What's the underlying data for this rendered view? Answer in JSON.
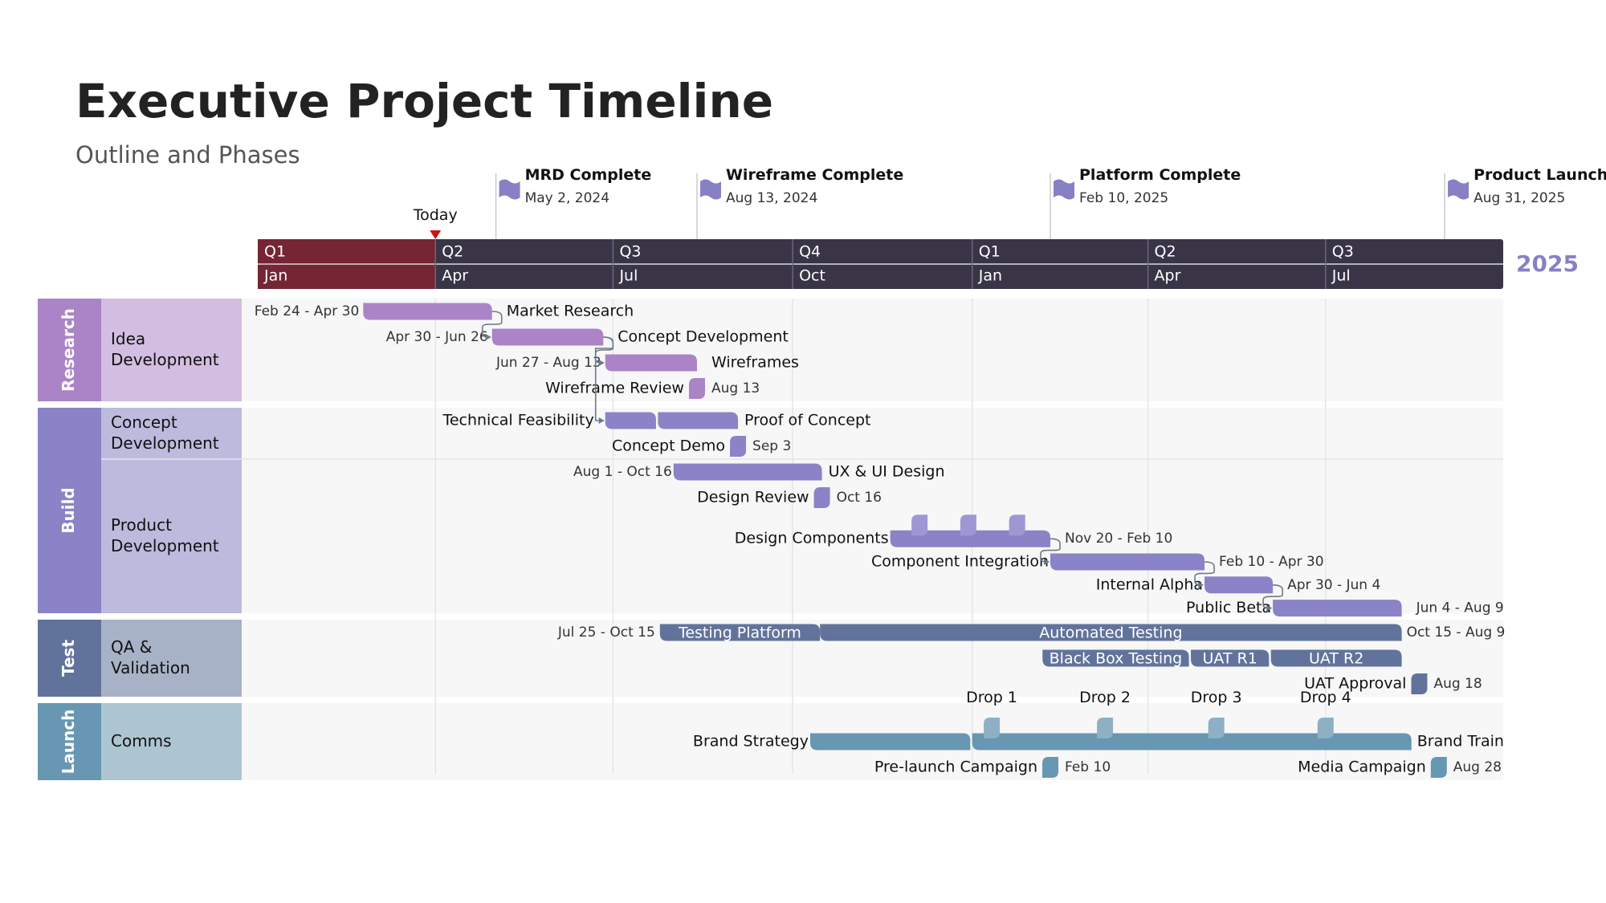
{
  "header": {
    "title": "Executive Project Timeline",
    "subtitle": "Outline and Phases"
  },
  "chart_data": {
    "type": "gantt",
    "timeline": {
      "start": "2024-01-01",
      "end": "2025-09-30",
      "today": {
        "label": "Today",
        "date": "2024-04-01"
      },
      "quarters": [
        {
          "label": "Q1",
          "start": "2024-01-01"
        },
        {
          "label": "Q2",
          "start": "2024-04-01"
        },
        {
          "label": "Q3",
          "start": "2024-07-01"
        },
        {
          "label": "Q4",
          "start": "2024-10-01"
        },
        {
          "label": "Q1",
          "start": "2025-01-01"
        },
        {
          "label": "Q2",
          "start": "2025-04-01"
        },
        {
          "label": "Q3",
          "start": "2025-07-01"
        }
      ],
      "months": [
        {
          "label": "Jan",
          "start": "2024-01-01"
        },
        {
          "label": "Apr",
          "start": "2024-04-01"
        },
        {
          "label": "Jul",
          "start": "2024-07-01"
        },
        {
          "label": "Oct",
          "start": "2024-10-01"
        },
        {
          "label": "Jan",
          "start": "2025-01-01"
        },
        {
          "label": "Apr",
          "start": "2025-04-01"
        },
        {
          "label": "Jul",
          "start": "2025-07-01"
        }
      ],
      "year_label": "2025",
      "colors": {
        "header": "#393547",
        "elapsed": "#752533",
        "today_marker": "#cc1111",
        "year_label": "#8880c4"
      }
    },
    "milestones": [
      {
        "name": "MRD Complete",
        "date_label": "May 2, 2024",
        "date": "2024-05-02"
      },
      {
        "name": "Wireframe Complete",
        "date_label": "Aug 13, 2024",
        "date": "2024-08-13"
      },
      {
        "name": "Platform Complete",
        "date_label": "Feb 10, 2025",
        "date": "2025-02-10"
      },
      {
        "name": "Product Launch",
        "date_label": "Aug 31, 2025",
        "date": "2025-08-31"
      }
    ],
    "phases": [
      {
        "name": "Research",
        "color": "#ab84c7",
        "lane_color": "#d3bde0",
        "swimlanes": [
          {
            "name": "Idea Development",
            "rows": 4
          }
        ]
      },
      {
        "name": "Build",
        "color": "#8a83c7",
        "lane_color": "#bdbade",
        "swimlanes": [
          {
            "name": "Concept Development",
            "rows": 2
          },
          {
            "name": "Product Development",
            "rows": 6
          }
        ]
      },
      {
        "name": "Test",
        "color": "#62739b",
        "lane_color": "#a8b2c6",
        "swimlanes": [
          {
            "name": "QA & Validation",
            "rows": 3
          }
        ]
      },
      {
        "name": "Launch",
        "color": "#6797b2",
        "lane_color": "#adc5d1",
        "swimlanes": [
          {
            "name": "Comms",
            "rows": 3
          }
        ]
      }
    ],
    "tasks": [
      {
        "id": "mr",
        "phase": "Research",
        "row": 0,
        "name": "Market Research",
        "start": "2024-02-24",
        "end": "2024-04-30",
        "date_label": "Feb 24 - Apr 30"
      },
      {
        "id": "cd",
        "phase": "Research",
        "row": 1,
        "name": "Concept Development",
        "start": "2024-04-30",
        "end": "2024-06-26",
        "date_label": "Apr 30 - Jun 26"
      },
      {
        "id": "wf",
        "phase": "Research",
        "row": 2,
        "name": "Wireframes",
        "start": "2024-06-27",
        "end": "2024-08-13",
        "date_label": "Jun 27 - Aug 13"
      },
      {
        "id": "wr",
        "phase": "Research",
        "row": 3,
        "name": "Wireframe Review",
        "type": "milestone",
        "date": "2024-08-13",
        "date_label": "Aug 13"
      },
      {
        "id": "tf",
        "phase": "Build",
        "row": 4,
        "name": "Technical Feasibility",
        "start": "2024-06-27",
        "end": "2024-07-23"
      },
      {
        "id": "poc",
        "phase": "Build",
        "row": 4,
        "name": "Proof of Concept",
        "start": "2024-07-24",
        "end": "2024-09-03"
      },
      {
        "id": "cdemo",
        "phase": "Build",
        "row": 5,
        "name": "Concept Demo",
        "type": "milestone",
        "date": "2024-09-03",
        "date_label": "Sep 3"
      },
      {
        "id": "ux",
        "phase": "Build",
        "row": 6,
        "name": "UX & UI Design",
        "start": "2024-08-01",
        "end": "2024-10-16",
        "date_label": "Aug 1 - Oct 16"
      },
      {
        "id": "drev",
        "phase": "Build",
        "row": 7,
        "name": "Design Review",
        "type": "milestone",
        "date": "2024-10-16",
        "date_label": "Oct 16"
      },
      {
        "id": "dc",
        "phase": "Build",
        "row": 8.6,
        "name": "Design Components",
        "start": "2024-11-20",
        "end": "2025-02-10",
        "date_label": "Nov 20 - Feb 10",
        "markers": [
          "2024-12-05",
          "2024-12-30",
          "2025-01-24"
        ]
      },
      {
        "id": "ci",
        "phase": "Build",
        "row": 9.5,
        "name": "Component Integration",
        "start": "2025-02-10",
        "end": "2025-04-30",
        "date_label": "Feb 10 - Apr 30"
      },
      {
        "id": "ia",
        "phase": "Build",
        "row": 10.4,
        "name": "Internal Alpha",
        "start": "2025-04-30",
        "end": "2025-06-04",
        "date_label": "Apr 30 - Jun 4"
      },
      {
        "id": "pb",
        "phase": "Build",
        "row": 11.3,
        "name": "Public Beta",
        "start": "2025-06-04",
        "end": "2025-08-09",
        "date_label": "Jun 4 - Aug 9"
      },
      {
        "id": "tp",
        "phase": "Test",
        "row": 12,
        "name": "Testing Platform",
        "label_inside": true,
        "start": "2024-07-25",
        "end": "2024-10-15",
        "date_label": "Jul 25 - Oct 15"
      },
      {
        "id": "at",
        "phase": "Test",
        "row": 12,
        "name": "Automated Testing",
        "label_inside": true,
        "start": "2024-10-15",
        "end": "2025-08-09",
        "date_label": "Oct 15 - Aug 9"
      },
      {
        "id": "bbt",
        "phase": "Test",
        "row": 13,
        "name": "Black Box Testing",
        "label_inside": true,
        "start": "2025-02-06",
        "end": "2025-04-22"
      },
      {
        "id": "uat1",
        "phase": "Test",
        "row": 13,
        "name": "UAT R1",
        "label_inside": true,
        "start": "2025-04-23",
        "end": "2025-06-02"
      },
      {
        "id": "uat2",
        "phase": "Test",
        "row": 13,
        "name": "UAT R2",
        "label_inside": true,
        "start": "2025-06-03",
        "end": "2025-08-09"
      },
      {
        "id": "uata",
        "phase": "Test",
        "row": 14,
        "name": "UAT Approval",
        "type": "milestone",
        "date": "2025-08-18",
        "date_label": "Aug 18"
      },
      {
        "id": "bs",
        "phase": "Launch",
        "row": 16,
        "name": "Brand Strategy",
        "start": "2024-10-10",
        "end": "2024-12-31"
      },
      {
        "id": "bt",
        "phase": "Launch",
        "row": 16,
        "name": "Brand Train",
        "start": "2025-01-01",
        "end": "2025-08-14",
        "drops": [
          {
            "name": "Drop 1",
            "date": "2025-01-11"
          },
          {
            "name": "Drop 2",
            "date": "2025-03-10"
          },
          {
            "name": "Drop 3",
            "date": "2025-05-06"
          },
          {
            "name": "Drop 4",
            "date": "2025-07-01"
          }
        ]
      },
      {
        "id": "plc",
        "phase": "Launch",
        "row": 17,
        "name": "Pre-launch Campaign",
        "type": "milestone",
        "date": "2025-02-10",
        "date_label": "Feb 10"
      },
      {
        "id": "mc",
        "phase": "Launch",
        "row": 17,
        "name": "Media Campaign",
        "type": "milestone",
        "date": "2025-08-28",
        "date_label": "Aug 28"
      }
    ],
    "dependencies": [
      [
        "mr",
        "cd"
      ],
      [
        "cd",
        "wf"
      ],
      [
        "cd",
        "tf"
      ],
      [
        "dc",
        "ci"
      ],
      [
        "ci",
        "ia"
      ],
      [
        "ia",
        "pb"
      ]
    ]
  }
}
